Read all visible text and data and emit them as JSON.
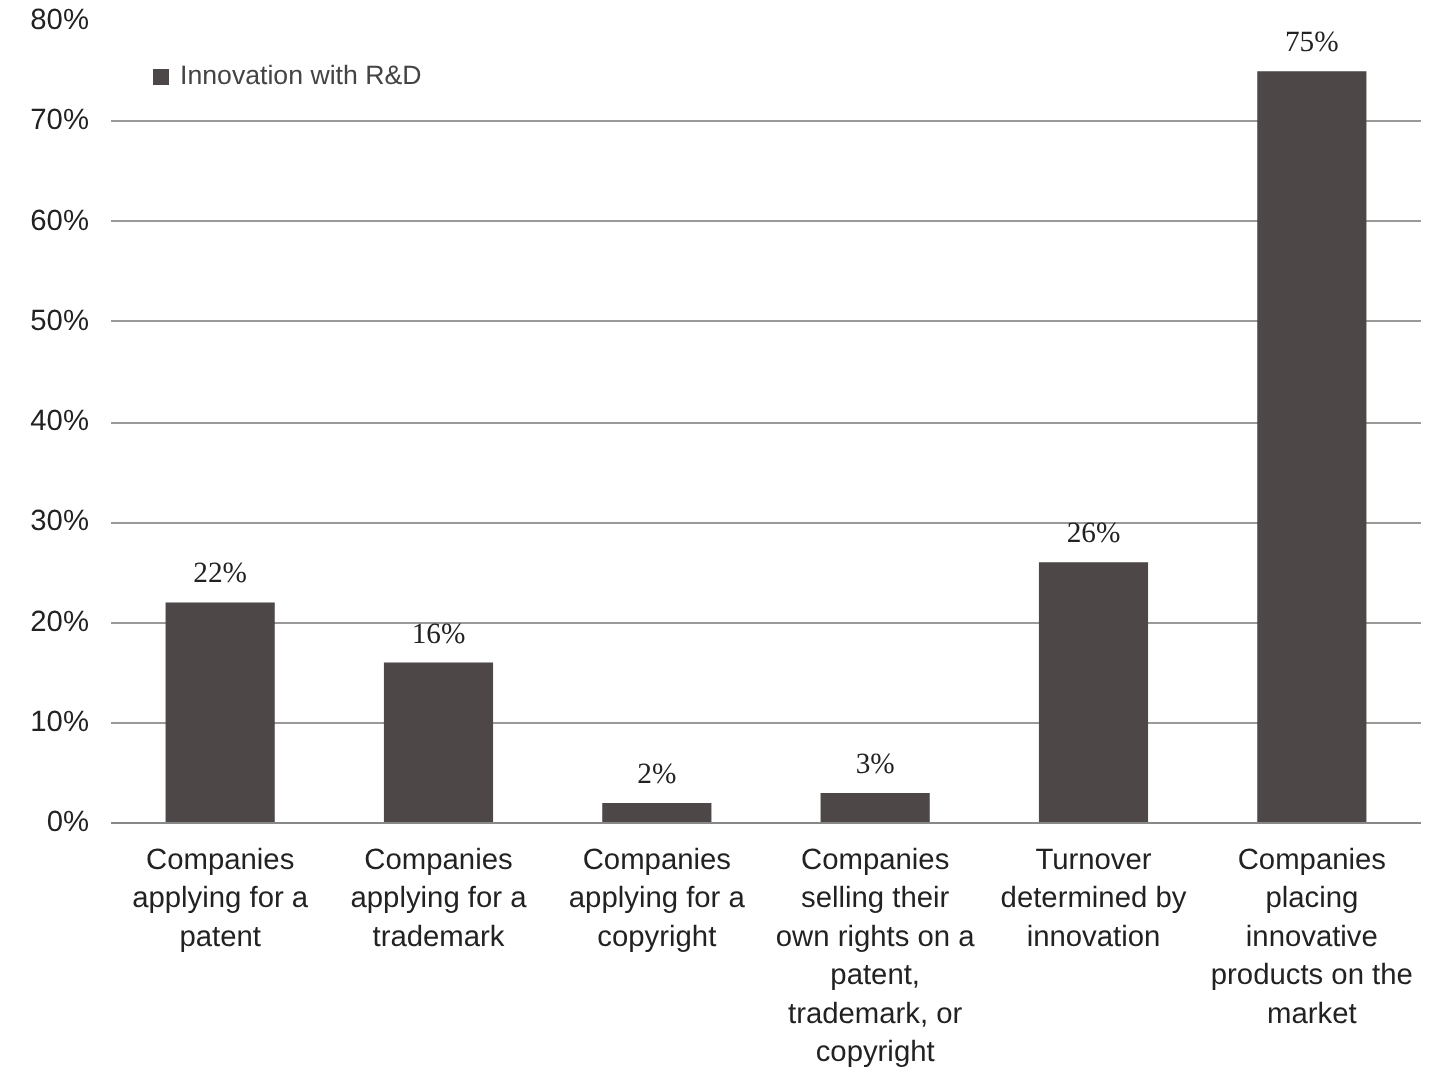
{
  "chart_data": {
    "type": "bar",
    "categories": [
      "Companies applying for a patent",
      "Companies applying for a trademark",
      "Companies applying for a copyright",
      "Companies selling their own rights on a patent, trademark, or copyright",
      "Turnover determined by innovation",
      "Companies placing innovative products on the market"
    ],
    "series": [
      {
        "name": "Innovation with R&D",
        "color": "#4d4747",
        "values": [
          22,
          16,
          2,
          3,
          26,
          75
        ],
        "value_labels": [
          "22%",
          "16%",
          "2%",
          "3%",
          "26%",
          "75%"
        ]
      }
    ],
    "ylim": [
      0,
      80
    ],
    "yticks": [
      {
        "value": 0,
        "label": "0%"
      },
      {
        "value": 10,
        "label": "10%"
      },
      {
        "value": 20,
        "label": "20%"
      },
      {
        "value": 30,
        "label": "30%"
      },
      {
        "value": 40,
        "label": "40%"
      },
      {
        "value": 50,
        "label": "50%"
      },
      {
        "value": 60,
        "label": "60%"
      },
      {
        "value": 70,
        "label": "70%"
      },
      {
        "value": 80,
        "label": "80%"
      }
    ],
    "grid": "y",
    "legend": "top left"
  }
}
